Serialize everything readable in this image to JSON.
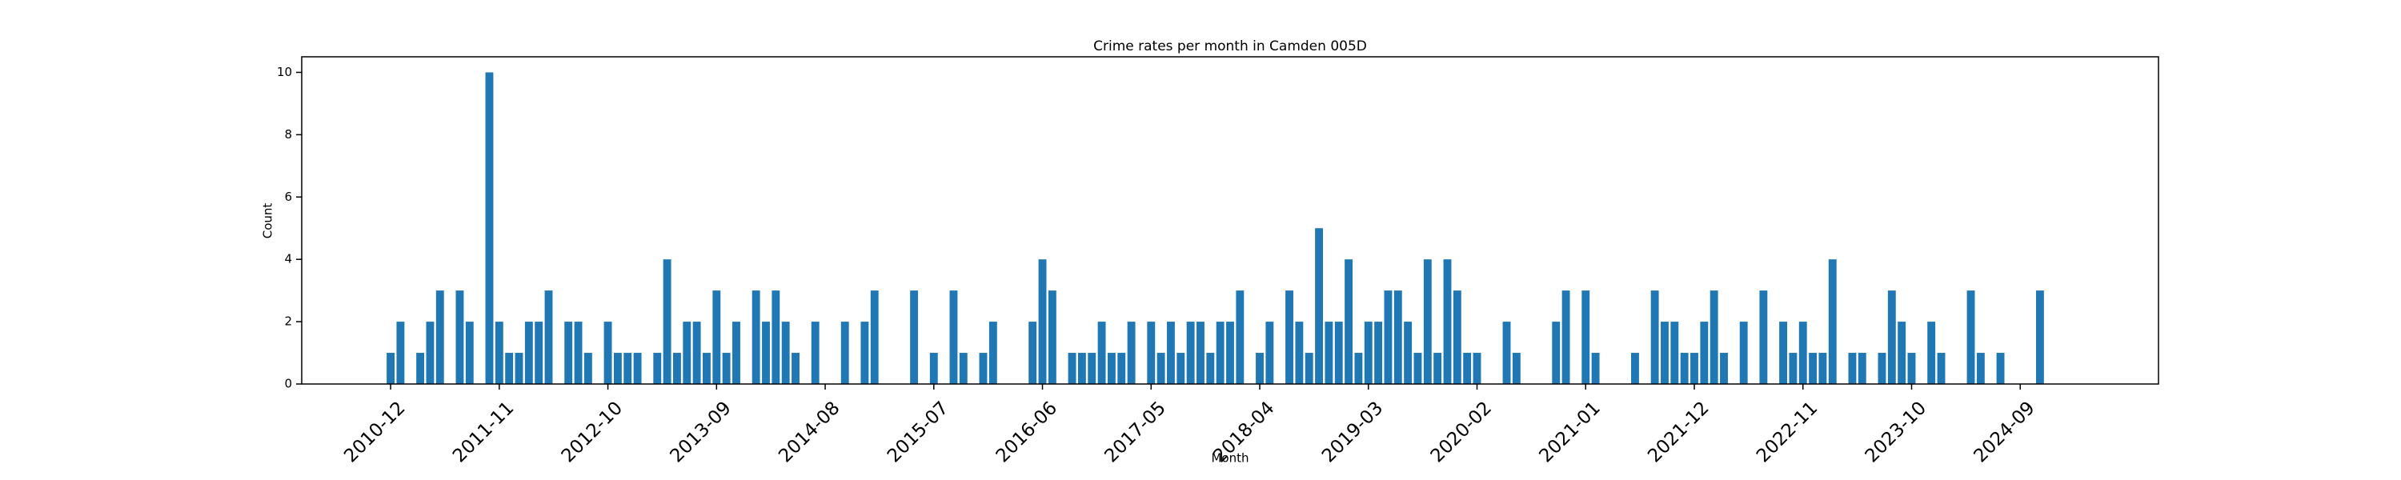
{
  "chart_data": {
    "type": "bar",
    "title": "Crime rates per month in Camden 005D",
    "xlabel": "Month",
    "ylabel": "Count",
    "color": "#1f77b4",
    "x": [
      "2010-12",
      "2011-01",
      "2011-03",
      "2011-04",
      "2011-05",
      "2011-07",
      "2011-08",
      "2011-10",
      "2011-11",
      "2011-12",
      "2012-01",
      "2012-02",
      "2012-03",
      "2012-04",
      "2012-06",
      "2012-07",
      "2012-08",
      "2012-10",
      "2012-11",
      "2012-12",
      "2013-01",
      "2013-03",
      "2013-04",
      "2013-05",
      "2013-06",
      "2013-07",
      "2013-08",
      "2013-09",
      "2013-10",
      "2013-11",
      "2014-01",
      "2014-02",
      "2014-03",
      "2014-04",
      "2014-05",
      "2014-07",
      "2014-10",
      "2014-12",
      "2015-01",
      "2015-05",
      "2015-07",
      "2015-09",
      "2015-10",
      "2015-12",
      "2016-01",
      "2016-05",
      "2016-06",
      "2016-07",
      "2016-09",
      "2016-10",
      "2016-11",
      "2016-12",
      "2017-01",
      "2017-02",
      "2017-03",
      "2017-05",
      "2017-06",
      "2017-07",
      "2017-08",
      "2017-09",
      "2017-10",
      "2017-11",
      "2017-12",
      "2018-01",
      "2018-02",
      "2018-04",
      "2018-05",
      "2018-07",
      "2018-08",
      "2018-09",
      "2018-10",
      "2018-11",
      "2018-12",
      "2019-01",
      "2019-02",
      "2019-03",
      "2019-04",
      "2019-05",
      "2019-06",
      "2019-07",
      "2019-08",
      "2019-09",
      "2019-10",
      "2019-11",
      "2019-12",
      "2020-01",
      "2020-02",
      "2020-05",
      "2020-06",
      "2020-10",
      "2020-11",
      "2021-01",
      "2021-02",
      "2021-06",
      "2021-08",
      "2021-09",
      "2021-10",
      "2021-11",
      "2021-12",
      "2022-01",
      "2022-02",
      "2022-03",
      "2022-05",
      "2022-07",
      "2022-09",
      "2022-10",
      "2022-11",
      "2022-12",
      "2023-01",
      "2023-02",
      "2023-04",
      "2023-05",
      "2023-07",
      "2023-08",
      "2023-09",
      "2023-10",
      "2023-12",
      "2024-01",
      "2024-04",
      "2024-05",
      "2024-07",
      "2024-11"
    ],
    "values": [
      1,
      2,
      1,
      2,
      3,
      3,
      2,
      10,
      2,
      1,
      1,
      2,
      2,
      3,
      2,
      2,
      1,
      2,
      1,
      1,
      1,
      1,
      4,
      1,
      2,
      2,
      1,
      3,
      1,
      2,
      3,
      2,
      3,
      2,
      1,
      2,
      2,
      2,
      3,
      3,
      1,
      3,
      1,
      1,
      2,
      2,
      4,
      3,
      1,
      1,
      1,
      2,
      1,
      1,
      2,
      2,
      1,
      2,
      1,
      2,
      2,
      1,
      2,
      2,
      3,
      1,
      2,
      3,
      2,
      1,
      5,
      2,
      2,
      4,
      1,
      2,
      2,
      3,
      3,
      2,
      1,
      4,
      1,
      4,
      3,
      1,
      1,
      2,
      1,
      2,
      3,
      3,
      1,
      1,
      3,
      2,
      2,
      1,
      1,
      2,
      3,
      1,
      2,
      3,
      2,
      1,
      2,
      1,
      1,
      4,
      1,
      1,
      1,
      3,
      2,
      1,
      2,
      1,
      3,
      1,
      1,
      3
    ],
    "xlim": [
      "2010-03",
      "2025-11"
    ],
    "xticks": [
      "2010-12",
      "2011-11",
      "2012-10",
      "2013-09",
      "2014-08",
      "2015-07",
      "2016-06",
      "2017-05",
      "2018-04",
      "2019-03",
      "2020-02",
      "2021-01",
      "2021-12",
      "2022-11",
      "2023-10",
      "2024-09"
    ],
    "ylim": [
      0,
      10.5
    ],
    "yticks": [
      0,
      2,
      4,
      6,
      8,
      10
    ]
  }
}
